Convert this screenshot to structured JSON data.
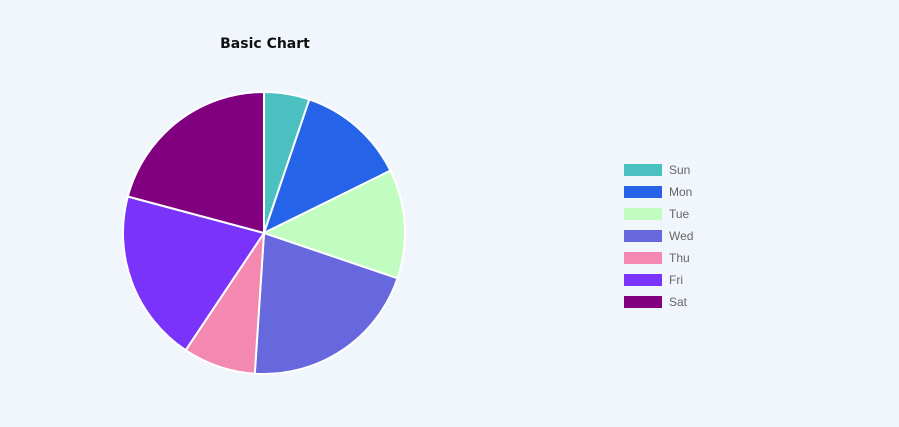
{
  "chart_data": {
    "type": "pie",
    "title": "Basic Chart",
    "categories": [
      "Sun",
      "Mon",
      "Tue",
      "Wed",
      "Thu",
      "Fri",
      "Sat"
    ],
    "values": [
      5,
      12,
      12,
      20,
      8,
      19,
      20
    ],
    "colors": [
      "#4bc0c0",
      "#2563e8",
      "#c1fdc0",
      "#6868de",
      "#f388b0",
      "#7a33fa",
      "#800080"
    ],
    "legend_position": "right"
  }
}
